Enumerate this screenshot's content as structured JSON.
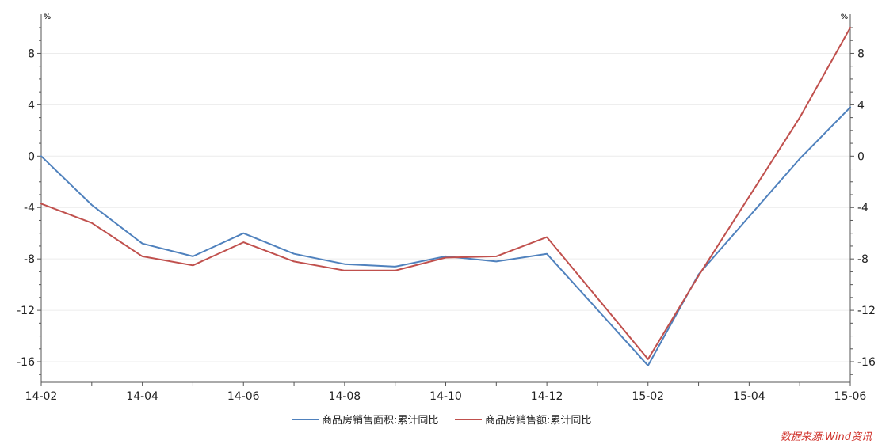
{
  "chart_data": {
    "type": "line",
    "x": [
      "14-02",
      "14-03",
      "14-04",
      "14-05",
      "14-06",
      "14-07",
      "14-08",
      "14-09",
      "14-10",
      "14-11",
      "14-12",
      "15-01",
      "15-02",
      "15-03",
      "15-04",
      "15-05",
      "15-06"
    ],
    "x_tick_labels": [
      "14-02",
      "14-04",
      "14-06",
      "14-08",
      "14-10",
      "14-12",
      "15-02",
      "15-04",
      "15-06"
    ],
    "series": [
      {
        "name": "商品房销售面积:累计同比",
        "color": "#4f81bd",
        "values": [
          0.0,
          -3.8,
          -6.8,
          -7.8,
          -6.0,
          -7.6,
          -8.4,
          -8.6,
          -7.8,
          -8.2,
          -7.6,
          null,
          -16.3,
          -9.2,
          null,
          -0.2,
          3.8
        ]
      },
      {
        "name": "商品房销售额:累计同比",
        "color": "#c0504d",
        "values": [
          -3.7,
          -5.2,
          -7.8,
          -8.5,
          -6.7,
          -8.2,
          -8.9,
          -8.9,
          -7.9,
          -7.8,
          -6.3,
          null,
          -15.8,
          -9.3,
          null,
          3.0,
          10.0
        ]
      }
    ],
    "ylim": [
      -17.6,
      10.8
    ],
    "y_ticks": [
      -16,
      -12,
      -8,
      -4,
      0,
      4,
      8
    ],
    "y_unit_left": "%",
    "y_unit_right": "%",
    "legend_position": "bottom-center",
    "source": "数据来源:Wind资讯",
    "grid": true,
    "title": "",
    "xlabel": "",
    "ylabel": ""
  }
}
